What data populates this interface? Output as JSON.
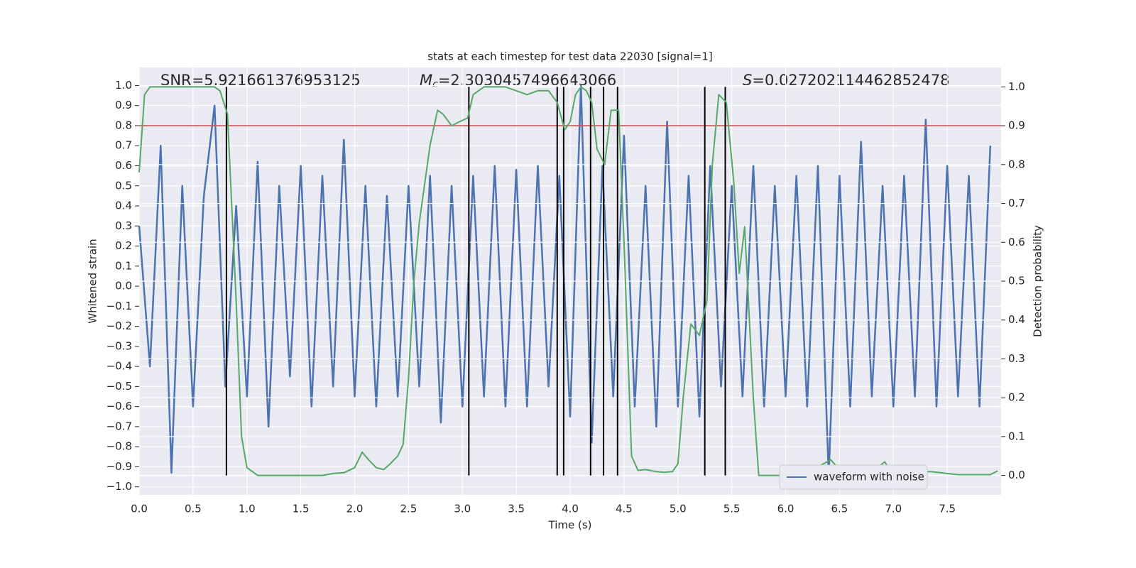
{
  "chart_data": {
    "type": "line",
    "title": "stats at each timestep for test data 22030 [signal=1]",
    "xlabel": "Time (s)",
    "ylabel": "Whitened strain",
    "y2label": "Detection probability",
    "annotations": [
      {
        "text": "SNR=5.921661376953125"
      },
      {
        "symbol": "M",
        "subscript": "c",
        "text": "=2.3030457496643066"
      },
      {
        "symbol": "S",
        "text": "=0.027202114462852478"
      }
    ],
    "xlim": [
      0,
      8
    ],
    "ylim": [
      -1.04,
      1.09
    ],
    "y2lim": [
      -0.05,
      1.05
    ],
    "xticks": [
      {
        "value": 0,
        "label": "0.0"
      },
      0.5,
      {
        "value": 1,
        "label": "1.0"
      },
      1.5,
      {
        "value": 2,
        "label": "2.0"
      },
      2.5,
      {
        "value": 3,
        "label": "3.0"
      },
      3.5,
      {
        "value": 4,
        "label": "4.0"
      },
      4.5,
      {
        "value": 5,
        "label": "5.0"
      },
      5.5,
      {
        "value": 6,
        "label": "6.0"
      },
      6.5,
      {
        "value": 7,
        "label": "7.0"
      },
      7.5
    ],
    "yticks": [
      {
        "value": -1,
        "label": "−1.0"
      },
      {
        "value": -0.9,
        "label": "−0.9"
      },
      {
        "value": -0.8,
        "label": "−0.8"
      },
      {
        "value": -0.7,
        "label": "−0.7"
      },
      {
        "value": -0.6,
        "label": "−0.6"
      },
      {
        "value": -0.5,
        "label": "−0.5"
      },
      {
        "value": -0.4,
        "label": "−0.4"
      },
      {
        "value": -0.3,
        "label": "−0.3"
      },
      {
        "value": -0.2,
        "label": "−0.2"
      },
      {
        "value": -0.1,
        "label": "−0.1"
      },
      {
        "value": 0,
        "label": "0.0"
      },
      0.1,
      0.2,
      0.3,
      0.4,
      0.5,
      0.6,
      0.7,
      0.8,
      0.9,
      {
        "value": 1,
        "label": "1.0"
      }
    ],
    "y2ticks": [
      {
        "value": 0,
        "label": "0.0"
      },
      0.1,
      0.2,
      0.3,
      0.4,
      0.5,
      0.6,
      0.7,
      0.8,
      0.9,
      {
        "value": 1,
        "label": "1.0"
      }
    ],
    "grid": true,
    "legend": "lower right",
    "hline": {
      "value": 0.8,
      "color": "#c44e52"
    },
    "vlines": {
      "color": "#000000",
      "x": [
        0.81,
        3.06,
        3.88,
        3.94,
        4.19,
        4.31,
        4.44,
        5.25,
        5.44
      ]
    },
    "series": [
      {
        "name": "waveform with noise",
        "color": "#4c72b0",
        "x": [
          0,
          0.1,
          0.2,
          0.3,
          0.4,
          0.5,
          0.6,
          0.7,
          0.8,
          0.9,
          1,
          1.1,
          1.2,
          1.3,
          1.4,
          1.5,
          1.6,
          1.7,
          1.8,
          1.9,
          2,
          2.1,
          2.2,
          2.3,
          2.4,
          2.5,
          2.6,
          2.7,
          2.8,
          2.9,
          3,
          3.1,
          3.2,
          3.3,
          3.4,
          3.5,
          3.6,
          3.7,
          3.8,
          3.9,
          4,
          4.1,
          4.2,
          4.3,
          4.4,
          4.5,
          4.6,
          4.7,
          4.8,
          4.9,
          5,
          5.1,
          5.2,
          5.3,
          5.4,
          5.5,
          5.6,
          5.7,
          5.8,
          5.9,
          6,
          6.1,
          6.2,
          6.3,
          6.4,
          6.5,
          6.6,
          6.7,
          6.8,
          6.9,
          7,
          7.1,
          7.2,
          7.3,
          7.4,
          7.5,
          7.6,
          7.7,
          7.8,
          7.9
        ],
        "values": [
          0.3,
          -0.4,
          0.7,
          -0.93,
          0.5,
          -0.6,
          0.45,
          0.9,
          -0.5,
          0.4,
          -0.55,
          0.62,
          -0.7,
          0.5,
          -0.45,
          0.6,
          -0.6,
          0.55,
          -0.5,
          0.73,
          -0.55,
          0.5,
          -0.6,
          0.45,
          -0.55,
          0.5,
          -0.5,
          0.55,
          -0.68,
          0.5,
          -0.6,
          0.55,
          -0.55,
          0.6,
          -0.6,
          0.58,
          -0.6,
          0.6,
          -0.5,
          0.55,
          -0.65,
          1.0,
          -0.78,
          0.6,
          -0.55,
          0.75,
          -0.6,
          0.5,
          -0.7,
          0.82,
          -0.6,
          0.55,
          -0.65,
          0.6,
          -0.5,
          0.5,
          -0.55,
          0.6,
          -0.6,
          0.5,
          -0.55,
          0.55,
          -0.6,
          0.6,
          -0.95,
          0.55,
          -0.6,
          0.72,
          -0.55,
          0.5,
          -0.6,
          0.55,
          -0.55,
          0.83,
          -0.6,
          0.6,
          -0.55,
          0.55,
          -0.6,
          0.7
        ]
      },
      {
        "color": "#55a868",
        "axis": "y2",
        "x": [
          0,
          0.05,
          0.1,
          0.2,
          0.7,
          0.75,
          0.82,
          0.9,
          0.95,
          1,
          1.1,
          1.5,
          1.7,
          1.8,
          1.9,
          2,
          2.07,
          2.13,
          2.2,
          2.27,
          2.33,
          2.4,
          2.45,
          2.5,
          2.55,
          2.6,
          2.7,
          2.77,
          2.82,
          2.9,
          2.97,
          3.05,
          3.1,
          3.2,
          3.4,
          3.5,
          3.6,
          3.7,
          3.8,
          3.88,
          3.95,
          4,
          4.05,
          4.1,
          4.15,
          4.2,
          4.25,
          4.32,
          4.38,
          4.45,
          4.5,
          4.57,
          4.63,
          4.7,
          4.8,
          4.87,
          4.95,
          5,
          5.05,
          5.12,
          5.2,
          5.27,
          5.32,
          5.38,
          5.45,
          5.52,
          5.57,
          5.62,
          5.7,
          5.75,
          6,
          6.15,
          6.25,
          6.35,
          6.42,
          6.5,
          6.6,
          6.7,
          6.75,
          6.85,
          6.92,
          6.98,
          7.05,
          7.12,
          7.2,
          7.25,
          7.35,
          7.5,
          7.6,
          7.9,
          7.97
        ],
        "values": [
          0.78,
          0.98,
          1,
          1,
          1,
          0.99,
          0.93,
          0.45,
          0.1,
          0.02,
          0,
          0,
          0,
          0.005,
          0.007,
          0.02,
          0.06,
          0.04,
          0.02,
          0.015,
          0.03,
          0.05,
          0.08,
          0.25,
          0.5,
          0.65,
          0.85,
          0.94,
          0.93,
          0.9,
          0.91,
          0.92,
          0.98,
          1,
          1,
          0.99,
          0.98,
          0.99,
          0.99,
          0.96,
          0.89,
          0.91,
          0.98,
          1,
          0.99,
          0.96,
          0.84,
          0.8,
          0.94,
          0.94,
          0.6,
          0.05,
          0.013,
          0.015,
          0.01,
          0.008,
          0.01,
          0.03,
          0.2,
          0.39,
          0.36,
          0.45,
          0.8,
          0.98,
          0.96,
          0.75,
          0.52,
          0.64,
          0.2,
          0,
          0,
          0.002,
          0.015,
          0.03,
          0.04,
          0.015,
          0.01,
          0,
          0,
          0.02,
          0.035,
          0.01,
          0.005,
          0.02,
          0.02,
          0.01,
          0.01,
          0.005,
          0.002,
          0.002,
          0.012
        ]
      }
    ]
  }
}
